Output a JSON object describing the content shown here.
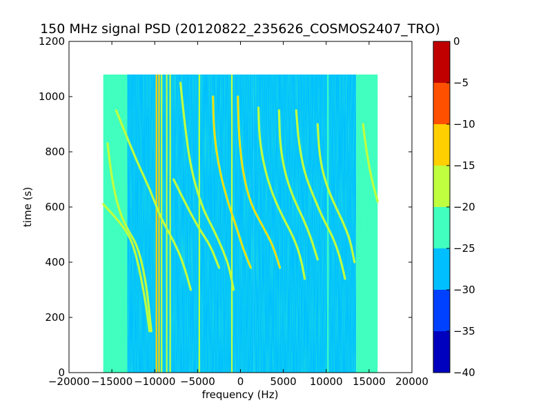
{
  "chart_data": {
    "type": "heatmap",
    "title": "150 MHz signal PSD (20120822_235626_COSMOS2407_TRO)",
    "xlabel": "frequency (Hz)",
    "ylabel": "time (s)",
    "xlim": [
      -20000,
      20000
    ],
    "ylim": [
      0,
      1200
    ],
    "x_ticks": [
      -20000,
      -15000,
      -10000,
      -5000,
      0,
      5000,
      10000,
      15000,
      20000
    ],
    "x_tick_labels": [
      "−20000",
      "−15000",
      "−10000",
      "−5000",
      "0",
      "5000",
      "10000",
      "15000",
      "20000"
    ],
    "y_ticks": [
      0,
      200,
      400,
      600,
      800,
      1000,
      1200
    ],
    "y_tick_labels": [
      "0",
      "200",
      "400",
      "600",
      "800",
      "1000",
      "1200"
    ],
    "data_extent": {
      "x": [
        -16000,
        16000
      ],
      "y": [
        0,
        1080
      ]
    },
    "grid": false,
    "colorbar": {
      "levels": [
        -40,
        -35,
        -30,
        -25,
        -20,
        -15,
        -10,
        -5,
        0
      ],
      "tick_labels": [
        "−40",
        "−35",
        "−30",
        "−25",
        "−20",
        "−15",
        "−10",
        "−5",
        "0"
      ],
      "colors": [
        "#0000bf",
        "#0040ff",
        "#00bfff",
        "#40ffbf",
        "#bfff40",
        "#ffcf00",
        "#ff5000",
        "#c00000"
      ]
    },
    "background_bands": [
      {
        "x": [
          -16000,
          -13200
        ],
        "level": -22.5
      },
      {
        "x": [
          -13200,
          -7000
        ],
        "level": -25.5
      },
      {
        "x": [
          -7000,
          1500
        ],
        "level": -27
      },
      {
        "x": [
          1500,
          13500
        ],
        "level": -28.5
      },
      {
        "x": [
          13500,
          16000
        ],
        "level": -22.5
      }
    ],
    "vertical_lines": [
      {
        "x": -9800,
        "level": -12
      },
      {
        "x": -9500,
        "level": -15
      },
      {
        "x": -9200,
        "level": -17
      },
      {
        "x": -8600,
        "level": -18
      },
      {
        "x": -8200,
        "level": -17
      },
      {
        "x": -4800,
        "level": -18
      },
      {
        "x": -1000,
        "level": -18
      },
      {
        "x": 10200,
        "level": -22
      }
    ],
    "doppler_traces": [
      {
        "level": -18,
        "points": [
          [
            -16000,
            610
          ],
          [
            -14500,
            560
          ],
          [
            -13000,
            500
          ],
          [
            -12200,
            430
          ],
          [
            -11500,
            330
          ],
          [
            -11000,
            240
          ],
          [
            -10600,
            150
          ]
        ]
      },
      {
        "level": -18,
        "points": [
          [
            -15500,
            830
          ],
          [
            -15000,
            700
          ],
          [
            -14200,
            590
          ],
          [
            -13200,
            520
          ],
          [
            -12200,
            470
          ],
          [
            -11500,
            400
          ],
          [
            -10900,
            300
          ],
          [
            -10400,
            150
          ]
        ]
      },
      {
        "level": -20,
        "points": [
          [
            -14500,
            950
          ],
          [
            -13200,
            850
          ],
          [
            -12000,
            760
          ],
          [
            -10500,
            660
          ],
          [
            -9300,
            560
          ],
          [
            -7500,
            460
          ],
          [
            -6500,
            380
          ],
          [
            -5800,
            300
          ]
        ]
      },
      {
        "level": -16,
        "points": [
          [
            -7000,
            1050
          ],
          [
            -6500,
            900
          ],
          [
            -5800,
            740
          ],
          [
            -4500,
            600
          ],
          [
            -3000,
            510
          ],
          [
            -2000,
            440
          ],
          [
            -1300,
            380
          ],
          [
            -800,
            300
          ]
        ]
      },
      {
        "level": -14,
        "points": [
          [
            -3200,
            1000
          ],
          [
            -3100,
            870
          ],
          [
            -2500,
            740
          ],
          [
            -1500,
            620
          ],
          [
            -500,
            530
          ],
          [
            300,
            450
          ],
          [
            1200,
            380
          ]
        ]
      },
      {
        "level": -14,
        "points": [
          [
            -300,
            1000
          ],
          [
            -200,
            860
          ],
          [
            300,
            720
          ],
          [
            1200,
            610
          ],
          [
            2600,
            530
          ],
          [
            3800,
            460
          ],
          [
            4600,
            380
          ]
        ]
      },
      {
        "level": -18,
        "points": [
          [
            2100,
            960
          ],
          [
            2200,
            850
          ],
          [
            2800,
            740
          ],
          [
            3800,
            640
          ],
          [
            5000,
            560
          ],
          [
            6200,
            490
          ],
          [
            7000,
            420
          ],
          [
            7500,
            340
          ]
        ]
      },
      {
        "level": -16,
        "points": [
          [
            4500,
            950
          ],
          [
            4600,
            830
          ],
          [
            5200,
            720
          ],
          [
            6200,
            630
          ],
          [
            7300,
            560
          ],
          [
            8200,
            490
          ],
          [
            9000,
            410
          ]
        ]
      },
      {
        "level": -20,
        "points": [
          [
            6500,
            950
          ],
          [
            6800,
            830
          ],
          [
            7500,
            720
          ],
          [
            8500,
            640
          ],
          [
            9600,
            560
          ],
          [
            10800,
            490
          ],
          [
            11600,
            420
          ],
          [
            12200,
            340
          ]
        ]
      },
      {
        "level": -20,
        "points": [
          [
            9000,
            900
          ],
          [
            9200,
            790
          ],
          [
            9800,
            700
          ],
          [
            10800,
            620
          ],
          [
            11900,
            550
          ],
          [
            12800,
            480
          ],
          [
            13300,
            400
          ]
        ]
      },
      {
        "level": -20,
        "points": [
          [
            14300,
            900
          ],
          [
            14700,
            800
          ],
          [
            15300,
            700
          ],
          [
            16000,
            620
          ]
        ]
      },
      {
        "level": -20,
        "points": [
          [
            -7800,
            700
          ],
          [
            -6200,
            600
          ],
          [
            -4800,
            520
          ],
          [
            -3500,
            460
          ],
          [
            -2500,
            380
          ]
        ]
      }
    ]
  }
}
